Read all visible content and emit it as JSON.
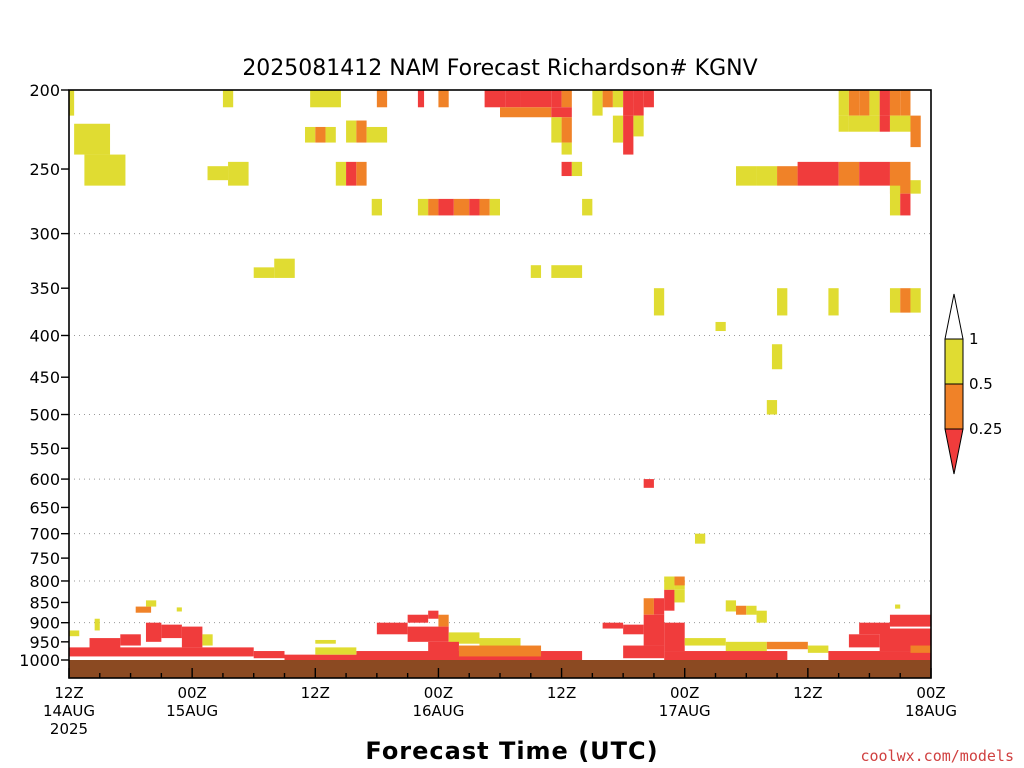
{
  "chart_data": {
    "type": "heatmap",
    "title": "2025081412 NAM Forecast Richardson# KGNV",
    "xlabel": "Forecast Time (UTC)",
    "ylabel": "",
    "credit": "coolwx.com/models",
    "y_scale": "log (pressure, hPa, inverted)",
    "ylim": [
      1000,
      200
    ],
    "xlim_hours": [
      0,
      84
    ],
    "grid": "dotted horizontal at 300, 400, 500, 600, 700, 800, 900 hPa",
    "y_ticks": [
      "200",
      "250",
      "300",
      "350",
      "400",
      "450",
      "500",
      "550",
      "600",
      "650",
      "700",
      "750",
      "800",
      "850",
      "900",
      "950",
      "1000"
    ],
    "x_ticks": [
      {
        "hour": 0,
        "line1": "12Z",
        "line2": "14AUG",
        "line3": "2025"
      },
      {
        "hour": 12,
        "line1": "00Z",
        "line2": "15AUG",
        "line3": ""
      },
      {
        "hour": 24,
        "line1": "12Z",
        "line2": "",
        "line3": ""
      },
      {
        "hour": 36,
        "line1": "00Z",
        "line2": "16AUG",
        "line3": ""
      },
      {
        "hour": 48,
        "line1": "12Z",
        "line2": "",
        "line3": ""
      },
      {
        "hour": 60,
        "line1": "00Z",
        "line2": "17AUG",
        "line3": ""
      },
      {
        "hour": 72,
        "line1": "12Z",
        "line2": "",
        "line3": ""
      },
      {
        "hour": 84,
        "line1": "00Z",
        "line2": "18AUG",
        "line3": ""
      }
    ],
    "colorbar": {
      "levels": [
        "1",
        "0.5",
        "0.25"
      ],
      "bins": [
        {
          "range": "> 1",
          "color": "#ffffff"
        },
        {
          "range": "0.5 - 1",
          "color": "#e0dc32"
        },
        {
          "range": "0.25 - 0.5",
          "color": "#f08228"
        },
        {
          "range": "< 0.25",
          "color": "#f03c3c"
        }
      ]
    },
    "colors": {
      "yellow": "#e0dc32",
      "orange": "#f08228",
      "red": "#f03c3c",
      "ground": "#8b4a22"
    },
    "cells": [
      {
        "t0": 0,
        "t1": 0.5,
        "p0": 200,
        "p1": 215,
        "c": "y"
      },
      {
        "t0": 0.5,
        "t1": 4,
        "p0": 220,
        "p1": 240,
        "c": "y"
      },
      {
        "t0": 1.5,
        "t1": 5.5,
        "p0": 240,
        "p1": 262,
        "c": "y"
      },
      {
        "t0": 15,
        "t1": 16,
        "p0": 200,
        "p1": 210,
        "c": "y"
      },
      {
        "t0": 13.5,
        "t1": 15.5,
        "p0": 248,
        "p1": 258,
        "c": "y"
      },
      {
        "t0": 15.5,
        "t1": 17.5,
        "p0": 245,
        "p1": 262,
        "c": "y"
      },
      {
        "t0": 23,
        "t1": 24,
        "p0": 222,
        "p1": 232,
        "c": "y"
      },
      {
        "t0": 24,
        "t1": 25,
        "p0": 222,
        "p1": 232,
        "c": "o"
      },
      {
        "t0": 25,
        "t1": 26,
        "p0": 222,
        "p1": 232,
        "c": "y"
      },
      {
        "t0": 23.5,
        "t1": 26.5,
        "p0": 200,
        "p1": 210,
        "c": "y"
      },
      {
        "t0": 26,
        "t1": 27,
        "p0": 245,
        "p1": 262,
        "c": "y"
      },
      {
        "t0": 27,
        "t1": 28,
        "p0": 245,
        "p1": 262,
        "c": "r"
      },
      {
        "t0": 28,
        "t1": 29,
        "p0": 245,
        "p1": 262,
        "c": "o"
      },
      {
        "t0": 27,
        "t1": 28,
        "p0": 218,
        "p1": 232,
        "c": "y"
      },
      {
        "t0": 28,
        "t1": 29,
        "p0": 218,
        "p1": 232,
        "c": "o"
      },
      {
        "t0": 29,
        "t1": 31,
        "p0": 222,
        "p1": 232,
        "c": "y"
      },
      {
        "t0": 29.5,
        "t1": 30.5,
        "p0": 272,
        "p1": 285,
        "c": "y"
      },
      {
        "t0": 18,
        "t1": 20,
        "p0": 330,
        "p1": 340,
        "c": "y"
      },
      {
        "t0": 20,
        "t1": 22,
        "p0": 322,
        "p1": 340,
        "c": "y"
      },
      {
        "t0": 30,
        "t1": 31,
        "p0": 200,
        "p1": 210,
        "c": "o"
      },
      {
        "t0": 34,
        "t1": 34.6,
        "p0": 200,
        "p1": 210,
        "c": "r"
      },
      {
        "t0": 36,
        "t1": 37,
        "p0": 200,
        "p1": 210,
        "c": "o"
      },
      {
        "t0": 34,
        "t1": 35,
        "p0": 272,
        "p1": 285,
        "c": "y"
      },
      {
        "t0": 35,
        "t1": 36,
        "p0": 272,
        "p1": 285,
        "c": "o"
      },
      {
        "t0": 36,
        "t1": 37.5,
        "p0": 272,
        "p1": 285,
        "c": "r"
      },
      {
        "t0": 37.5,
        "t1": 39,
        "p0": 272,
        "p1": 285,
        "c": "o"
      },
      {
        "t0": 39,
        "t1": 40,
        "p0": 272,
        "p1": 285,
        "c": "r"
      },
      {
        "t0": 40,
        "t1": 41,
        "p0": 272,
        "p1": 285,
        "c": "o"
      },
      {
        "t0": 41,
        "t1": 42,
        "p0": 272,
        "p1": 285,
        "c": "y"
      },
      {
        "t0": 40.5,
        "t1": 42.5,
        "p0": 200,
        "p1": 210,
        "c": "r"
      },
      {
        "t0": 42.5,
        "t1": 44,
        "p0": 200,
        "p1": 210,
        "c": "r"
      },
      {
        "t0": 44,
        "t1": 47,
        "p0": 200,
        "p1": 210,
        "c": "r"
      },
      {
        "t0": 47,
        "t1": 48,
        "p0": 200,
        "p1": 210,
        "c": "r"
      },
      {
        "t0": 48,
        "t1": 49,
        "p0": 200,
        "p1": 210,
        "c": "o"
      },
      {
        "t0": 42,
        "t1": 47,
        "p0": 210,
        "p1": 216,
        "c": "o"
      },
      {
        "t0": 47,
        "t1": 49,
        "p0": 210,
        "p1": 216,
        "c": "r"
      },
      {
        "t0": 48,
        "t1": 49,
        "p0": 216,
        "p1": 232,
        "c": "o"
      },
      {
        "t0": 47,
        "t1": 48,
        "p0": 216,
        "p1": 232,
        "c": "y"
      },
      {
        "t0": 48,
        "t1": 49,
        "p0": 232,
        "p1": 240,
        "c": "y"
      },
      {
        "t0": 48,
        "t1": 49,
        "p0": 245,
        "p1": 255,
        "c": "r"
      },
      {
        "t0": 49,
        "t1": 50,
        "p0": 245,
        "p1": 255,
        "c": "y"
      },
      {
        "t0": 50,
        "t1": 51,
        "p0": 272,
        "p1": 285,
        "c": "y"
      },
      {
        "t0": 45,
        "t1": 46,
        "p0": 328,
        "p1": 340,
        "c": "y"
      },
      {
        "t0": 47,
        "t1": 50,
        "p0": 328,
        "p1": 340,
        "c": "y"
      },
      {
        "t0": 51,
        "t1": 52,
        "p0": 200,
        "p1": 215,
        "c": "y"
      },
      {
        "t0": 52,
        "t1": 53,
        "p0": 200,
        "p1": 210,
        "c": "o"
      },
      {
        "t0": 53,
        "t1": 54,
        "p0": 200,
        "p1": 210,
        "c": "y"
      },
      {
        "t0": 54,
        "t1": 55,
        "p0": 200,
        "p1": 215,
        "c": "r"
      },
      {
        "t0": 55,
        "t1": 56,
        "p0": 200,
        "p1": 215,
        "c": "r"
      },
      {
        "t0": 53,
        "t1": 54,
        "p0": 215,
        "p1": 232,
        "c": "y"
      },
      {
        "t0": 54,
        "t1": 55,
        "p0": 215,
        "p1": 240,
        "c": "r"
      },
      {
        "t0": 55,
        "t1": 56,
        "p0": 215,
        "p1": 228,
        "c": "y"
      },
      {
        "t0": 56,
        "t1": 57,
        "p0": 200,
        "p1": 210,
        "c": "r"
      },
      {
        "t0": 57,
        "t1": 58,
        "p0": 350,
        "p1": 378,
        "c": "y"
      },
      {
        "t0": 63,
        "t1": 64,
        "p0": 385,
        "p1": 395,
        "c": "y"
      },
      {
        "t0": 69,
        "t1": 70,
        "p0": 350,
        "p1": 378,
        "c": "y"
      },
      {
        "t0": 68.5,
        "t1": 69.5,
        "p0": 410,
        "p1": 440,
        "c": "y"
      },
      {
        "t0": 68,
        "t1": 69,
        "p0": 480,
        "p1": 500,
        "c": "y"
      },
      {
        "t0": 74,
        "t1": 75,
        "p0": 350,
        "p1": 378,
        "c": "y"
      },
      {
        "t0": 75,
        "t1": 76,
        "p0": 200,
        "p1": 215,
        "c": "y"
      },
      {
        "t0": 76,
        "t1": 77,
        "p0": 200,
        "p1": 215,
        "c": "o"
      },
      {
        "t0": 77,
        "t1": 78,
        "p0": 200,
        "p1": 215,
        "c": "o"
      },
      {
        "t0": 78,
        "t1": 79,
        "p0": 200,
        "p1": 215,
        "c": "y"
      },
      {
        "t0": 79,
        "t1": 80,
        "p0": 200,
        "p1": 215,
        "c": "r"
      },
      {
        "t0": 80,
        "t1": 81,
        "p0": 200,
        "p1": 215,
        "c": "o"
      },
      {
        "t0": 81,
        "t1": 82,
        "p0": 200,
        "p1": 215,
        "c": "o"
      },
      {
        "t0": 75,
        "t1": 76,
        "p0": 215,
        "p1": 225,
        "c": "y"
      },
      {
        "t0": 76,
        "t1": 79,
        "p0": 215,
        "p1": 225,
        "c": "y"
      },
      {
        "t0": 79,
        "t1": 80,
        "p0": 215,
        "p1": 225,
        "c": "r"
      },
      {
        "t0": 80,
        "t1": 82,
        "p0": 215,
        "p1": 225,
        "c": "y"
      },
      {
        "t0": 82,
        "t1": 83,
        "p0": 215,
        "p1": 235,
        "c": "o"
      },
      {
        "t0": 65,
        "t1": 67,
        "p0": 248,
        "p1": 262,
        "c": "y"
      },
      {
        "t0": 67,
        "t1": 69,
        "p0": 248,
        "p1": 262,
        "c": "y"
      },
      {
        "t0": 69,
        "t1": 71,
        "p0": 248,
        "p1": 262,
        "c": "o"
      },
      {
        "t0": 71,
        "t1": 75,
        "p0": 245,
        "p1": 262,
        "c": "r"
      },
      {
        "t0": 75,
        "t1": 77,
        "p0": 245,
        "p1": 262,
        "c": "o"
      },
      {
        "t0": 77,
        "t1": 80,
        "p0": 245,
        "p1": 262,
        "c": "r"
      },
      {
        "t0": 80,
        "t1": 82,
        "p0": 245,
        "p1": 268,
        "c": "o"
      },
      {
        "t0": 82,
        "t1": 83,
        "p0": 258,
        "p1": 268,
        "c": "y"
      },
      {
        "t0": 80,
        "t1": 81,
        "p0": 262,
        "p1": 285,
        "c": "y"
      },
      {
        "t0": 81,
        "t1": 82,
        "p0": 268,
        "p1": 285,
        "c": "r"
      },
      {
        "t0": 80,
        "t1": 81,
        "p0": 350,
        "p1": 375,
        "c": "y"
      },
      {
        "t0": 81,
        "t1": 82,
        "p0": 350,
        "p1": 375,
        "c": "o"
      },
      {
        "t0": 82,
        "t1": 83,
        "p0": 350,
        "p1": 375,
        "c": "y"
      },
      {
        "t0": 56,
        "t1": 57,
        "p0": 600,
        "p1": 615,
        "c": "r"
      },
      {
        "t0": 61,
        "t1": 62,
        "p0": 700,
        "p1": 720,
        "c": "y"
      },
      {
        "t0": 59,
        "t1": 60,
        "p0": 800,
        "p1": 820,
        "c": "y"
      },
      {
        "t0": 56,
        "t1": 57,
        "p0": 840,
        "p1": 880,
        "c": "o"
      },
      {
        "t0": 57,
        "t1": 58,
        "p0": 840,
        "p1": 880,
        "c": "r"
      },
      {
        "t0": 58,
        "t1": 59,
        "p0": 820,
        "p1": 870,
        "c": "r"
      },
      {
        "t0": 58,
        "t1": 59,
        "p0": 790,
        "p1": 820,
        "c": "y"
      },
      {
        "t0": 59,
        "t1": 60,
        "p0": 820,
        "p1": 850,
        "c": "y"
      },
      {
        "t0": 59,
        "t1": 60,
        "p0": 790,
        "p1": 810,
        "c": "o"
      },
      {
        "t0": 6.5,
        "t1": 8,
        "p0": 860,
        "p1": 875,
        "c": "o"
      },
      {
        "t0": 7.5,
        "t1": 8.5,
        "p0": 845,
        "p1": 860,
        "c": "y"
      },
      {
        "t0": 10.5,
        "t1": 11,
        "p0": 862,
        "p1": 872,
        "c": "y"
      },
      {
        "t0": 64,
        "t1": 65,
        "p0": 845,
        "p1": 872,
        "c": "y"
      },
      {
        "t0": 65,
        "t1": 66,
        "p0": 858,
        "p1": 880,
        "c": "o"
      },
      {
        "t0": 66,
        "t1": 67,
        "p0": 858,
        "p1": 880,
        "c": "y"
      },
      {
        "t0": 67,
        "t1": 68,
        "p0": 870,
        "p1": 900,
        "c": "y"
      },
      {
        "t0": 80.5,
        "t1": 81,
        "p0": 855,
        "p1": 865,
        "c": "y"
      },
      {
        "t0": 0,
        "t1": 1,
        "p0": 920,
        "p1": 935,
        "c": "y"
      },
      {
        "t0": 2.5,
        "t1": 3,
        "p0": 890,
        "p1": 920,
        "c": "y"
      },
      {
        "t0": 7.5,
        "t1": 9,
        "p0": 900,
        "p1": 950,
        "c": "r"
      },
      {
        "t0": 9,
        "t1": 11,
        "p0": 905,
        "p1": 940,
        "c": "r"
      },
      {
        "t0": 11,
        "t1": 13,
        "p0": 910,
        "p1": 965,
        "c": "r"
      },
      {
        "t0": 13,
        "t1": 14,
        "p0": 930,
        "p1": 960,
        "c": "y"
      },
      {
        "t0": 5,
        "t1": 7,
        "p0": 930,
        "p1": 960,
        "c": "r"
      },
      {
        "t0": 2,
        "t1": 5,
        "p0": 940,
        "p1": 970,
        "c": "r"
      },
      {
        "t0": 0,
        "t1": 18,
        "p0": 965,
        "p1": 990,
        "c": "r"
      },
      {
        "t0": 18,
        "t1": 21,
        "p0": 975,
        "p1": 995,
        "c": "r"
      },
      {
        "t0": 21,
        "t1": 30,
        "p0": 985,
        "p1": 1000,
        "c": "r"
      },
      {
        "t0": 24,
        "t1": 26,
        "p0": 945,
        "p1": 955,
        "c": "y"
      },
      {
        "t0": 33,
        "t1": 35,
        "p0": 880,
        "p1": 900,
        "c": "r"
      },
      {
        "t0": 35,
        "t1": 36,
        "p0": 870,
        "p1": 890,
        "c": "r"
      },
      {
        "t0": 36,
        "t1": 37,
        "p0": 880,
        "p1": 910,
        "c": "o"
      },
      {
        "t0": 30,
        "t1": 33,
        "p0": 900,
        "p1": 930,
        "c": "r"
      },
      {
        "t0": 33,
        "t1": 37,
        "p0": 910,
        "p1": 950,
        "c": "r"
      },
      {
        "t0": 37,
        "t1": 40,
        "p0": 925,
        "p1": 955,
        "c": "y"
      },
      {
        "t0": 40,
        "t1": 44,
        "p0": 940,
        "p1": 965,
        "c": "y"
      },
      {
        "t0": 35,
        "t1": 38,
        "p0": 950,
        "p1": 980,
        "c": "r"
      },
      {
        "t0": 28,
        "t1": 50,
        "p0": 975,
        "p1": 1000,
        "c": "r"
      },
      {
        "t0": 38,
        "t1": 46,
        "p0": 960,
        "p1": 990,
        "c": "o"
      },
      {
        "t0": 24,
        "t1": 28,
        "p0": 965,
        "p1": 985,
        "c": "y"
      },
      {
        "t0": 52,
        "t1": 54,
        "p0": 900,
        "p1": 915,
        "c": "r"
      },
      {
        "t0": 54,
        "t1": 56,
        "p0": 905,
        "p1": 930,
        "c": "r"
      },
      {
        "t0": 56,
        "t1": 58,
        "p0": 880,
        "p1": 960,
        "c": "r"
      },
      {
        "t0": 58,
        "t1": 60,
        "p0": 900,
        "p1": 975,
        "c": "r"
      },
      {
        "t0": 54,
        "t1": 58,
        "p0": 960,
        "p1": 995,
        "c": "r"
      },
      {
        "t0": 58,
        "t1": 70,
        "p0": 975,
        "p1": 1000,
        "c": "r"
      },
      {
        "t0": 60,
        "t1": 64,
        "p0": 940,
        "p1": 960,
        "c": "y"
      },
      {
        "t0": 64,
        "t1": 68,
        "p0": 950,
        "p1": 975,
        "c": "y"
      },
      {
        "t0": 68,
        "t1": 72,
        "p0": 950,
        "p1": 970,
        "c": "o"
      },
      {
        "t0": 72,
        "t1": 74,
        "p0": 960,
        "p1": 980,
        "c": "y"
      },
      {
        "t0": 77,
        "t1": 80,
        "p0": 900,
        "p1": 930,
        "c": "r"
      },
      {
        "t0": 80,
        "t1": 84,
        "p0": 880,
        "p1": 910,
        "c": "r"
      },
      {
        "t0": 76,
        "t1": 79,
        "p0": 930,
        "p1": 965,
        "c": "r"
      },
      {
        "t0": 79,
        "t1": 84,
        "p0": 915,
        "p1": 975,
        "c": "r"
      },
      {
        "t0": 74,
        "t1": 84,
        "p0": 975,
        "p1": 1000,
        "c": "r"
      },
      {
        "t0": 82,
        "t1": 84,
        "p0": 960,
        "p1": 980,
        "c": "o"
      }
    ]
  }
}
